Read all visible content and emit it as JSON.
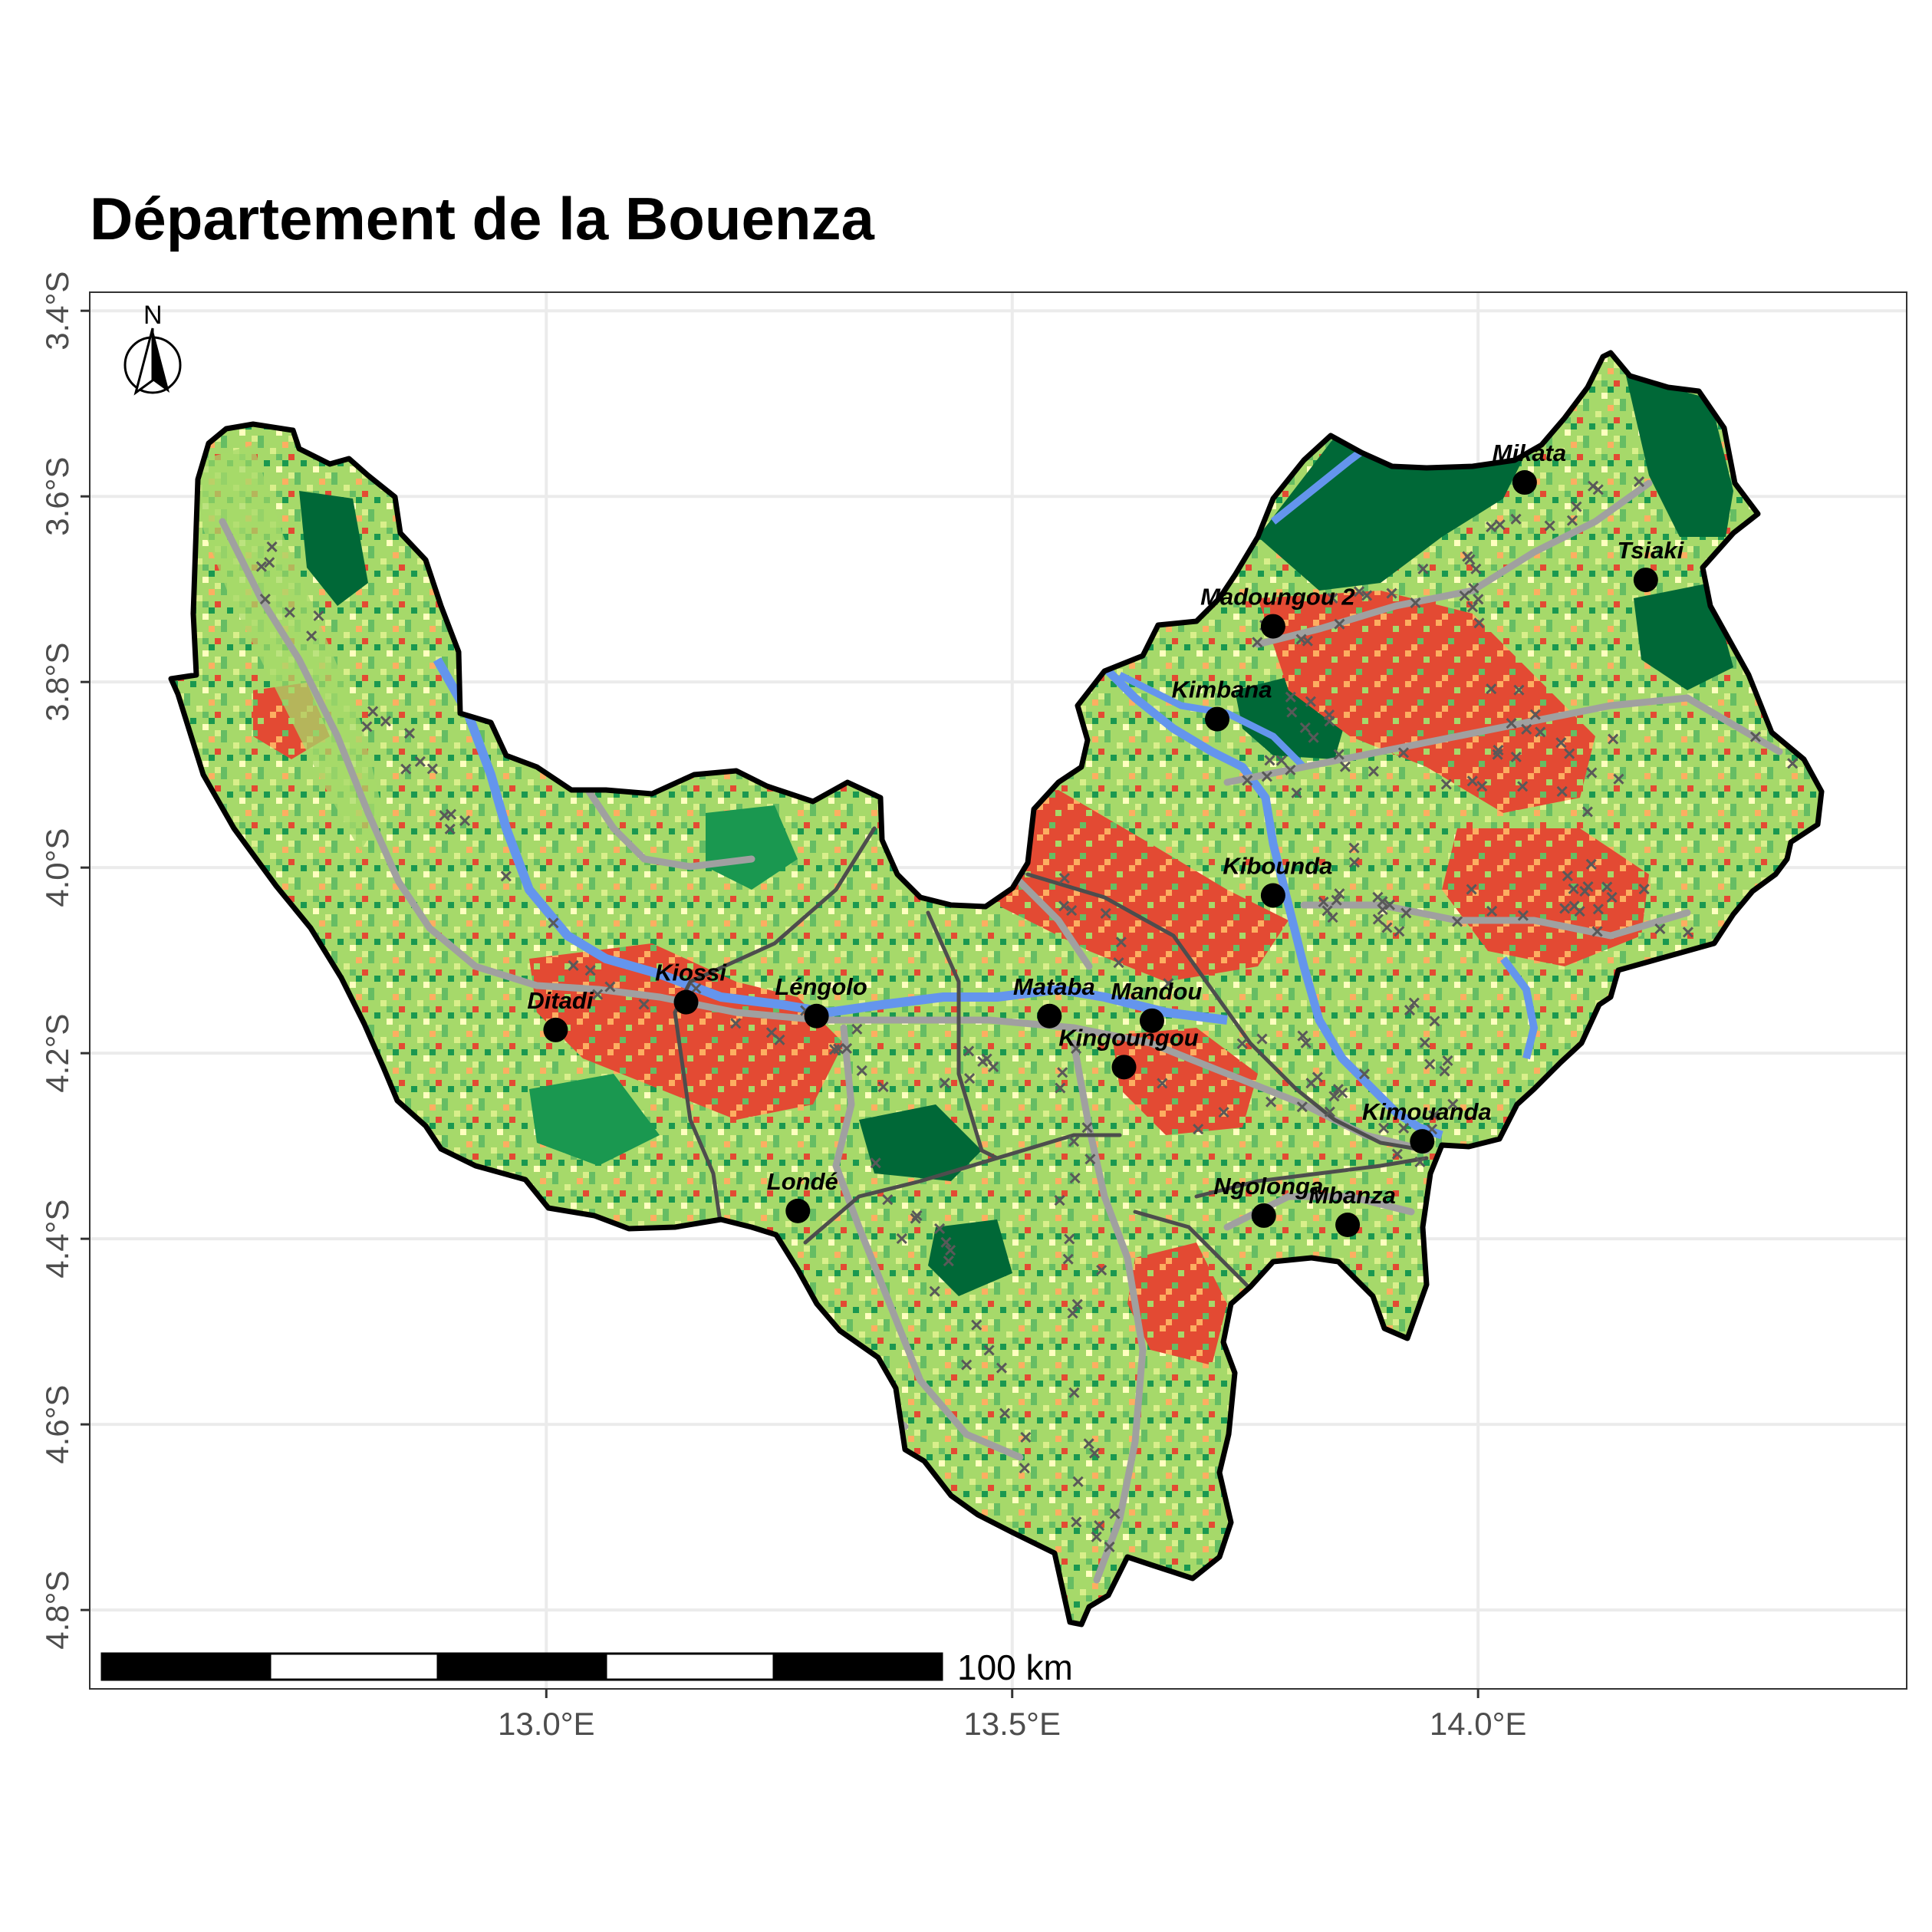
{
  "title": "Département de la Bouenza",
  "x_ticks": [
    "13.0°E",
    "13.5°E",
    "14.0°E"
  ],
  "y_ticks": [
    "3.4°S",
    "3.6°S",
    "3.8°S",
    "4.0°S",
    "4.2°S",
    "4.4°S",
    "4.6°S",
    "4.8°S"
  ],
  "x_tick_values": [
    13.0,
    13.5,
    14.0
  ],
  "y_tick_values": [
    -3.4,
    -3.6,
    -3.8,
    -4.0,
    -4.2,
    -4.4,
    -4.6,
    -4.8
  ],
  "lon_range": [
    12.51,
    14.46
  ],
  "lat_range": [
    -4.885,
    -3.38
  ],
  "north_arrow_label": "N",
  "scale_bar_label": "100 km",
  "towns": [
    {
      "name": "Mikata",
      "lon": 14.05,
      "lat": -3.585
    },
    {
      "name": "Tsiaki",
      "lon": 14.18,
      "lat": -3.69
    },
    {
      "name": "Madoungou 2",
      "lon": 13.78,
      "lat": -3.74
    },
    {
      "name": "Kimbana",
      "lon": 13.72,
      "lat": -3.84
    },
    {
      "name": "Kibounda",
      "lon": 13.78,
      "lat": -4.03
    },
    {
      "name": "Kiossi",
      "lon": 13.15,
      "lat": -4.145
    },
    {
      "name": "Ditadi",
      "lon": 13.01,
      "lat": -4.175
    },
    {
      "name": "Léngolo",
      "lon": 13.29,
      "lat": -4.16
    },
    {
      "name": "Mataba",
      "lon": 13.54,
      "lat": -4.16
    },
    {
      "name": "Mandou",
      "lon": 13.65,
      "lat": -4.165
    },
    {
      "name": "Kingoungou",
      "lon": 13.62,
      "lat": -4.215
    },
    {
      "name": "Kimouanda",
      "lon": 13.94,
      "lat": -4.295
    },
    {
      "name": "Ngolonga",
      "lon": 13.77,
      "lat": -4.375
    },
    {
      "name": "Mbanza",
      "lon": 13.86,
      "lat": -4.385
    },
    {
      "name": "Londé",
      "lon": 13.27,
      "lat": -4.37
    }
  ],
  "colors": {
    "background": "#ffffff",
    "grid": "#ebebeb",
    "border": "#000000",
    "dense_forest": "#006837",
    "forest": "#1a9850",
    "shrub": "#66bd63",
    "savanna": "#a6d96a",
    "grassland": "#d9ef8b",
    "sparse": "#ffffbf",
    "cropland": "#fdae61",
    "bare": "#e34a33",
    "water": "#6495ed",
    "tracks": "#a0a0a0",
    "roads": "#4d4d4d",
    "settlements": "#595959"
  }
}
